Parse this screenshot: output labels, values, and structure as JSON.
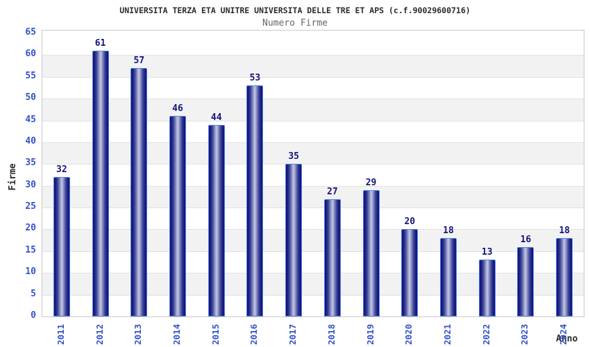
{
  "chart": {
    "title": "UNIVERSITA TERZA ETA UNITRE UNIVERSITA DELLE TRE ET APS (c.f.90029600716)",
    "subtitle": "Numero Firme",
    "y_axis_title": "Firme",
    "x_axis_title": "Anno"
  },
  "chart_data": {
    "type": "bar",
    "title": "UNIVERSITA TERZA ETA UNITRE UNIVERSITA DELLE TRE ET APS (c.f.90029600716)",
    "subtitle": "Numero Firme",
    "xlabel": "Anno",
    "ylabel": "Firme",
    "categories": [
      "2011",
      "2012",
      "2013",
      "2014",
      "2015",
      "2016",
      "2017",
      "2018",
      "2019",
      "2020",
      "2021",
      "2022",
      "2023",
      "2024"
    ],
    "values": [
      32,
      61,
      57,
      46,
      44,
      53,
      35,
      27,
      29,
      20,
      18,
      13,
      16,
      18
    ],
    "ylim": [
      0,
      65
    ],
    "ytick_step": 5,
    "grid": "alternating-horizontal-bands",
    "legend": "none",
    "colors": {
      "axis_label_blue": "#3352cc",
      "value_label_navy": "#14147e",
      "bar_border": "#4d86e8",
      "bar_dark": "#15157a",
      "bar_mid": "#3a4096",
      "bar_light": "#b9bede",
      "band_gray": "#f2f2f2",
      "band_white": "#ffffff",
      "grid_line": "#e2e2e2",
      "plot_border": "#c9c9c9",
      "title_color": "#2b2b2b",
      "subtitle_color": "#666666"
    }
  }
}
